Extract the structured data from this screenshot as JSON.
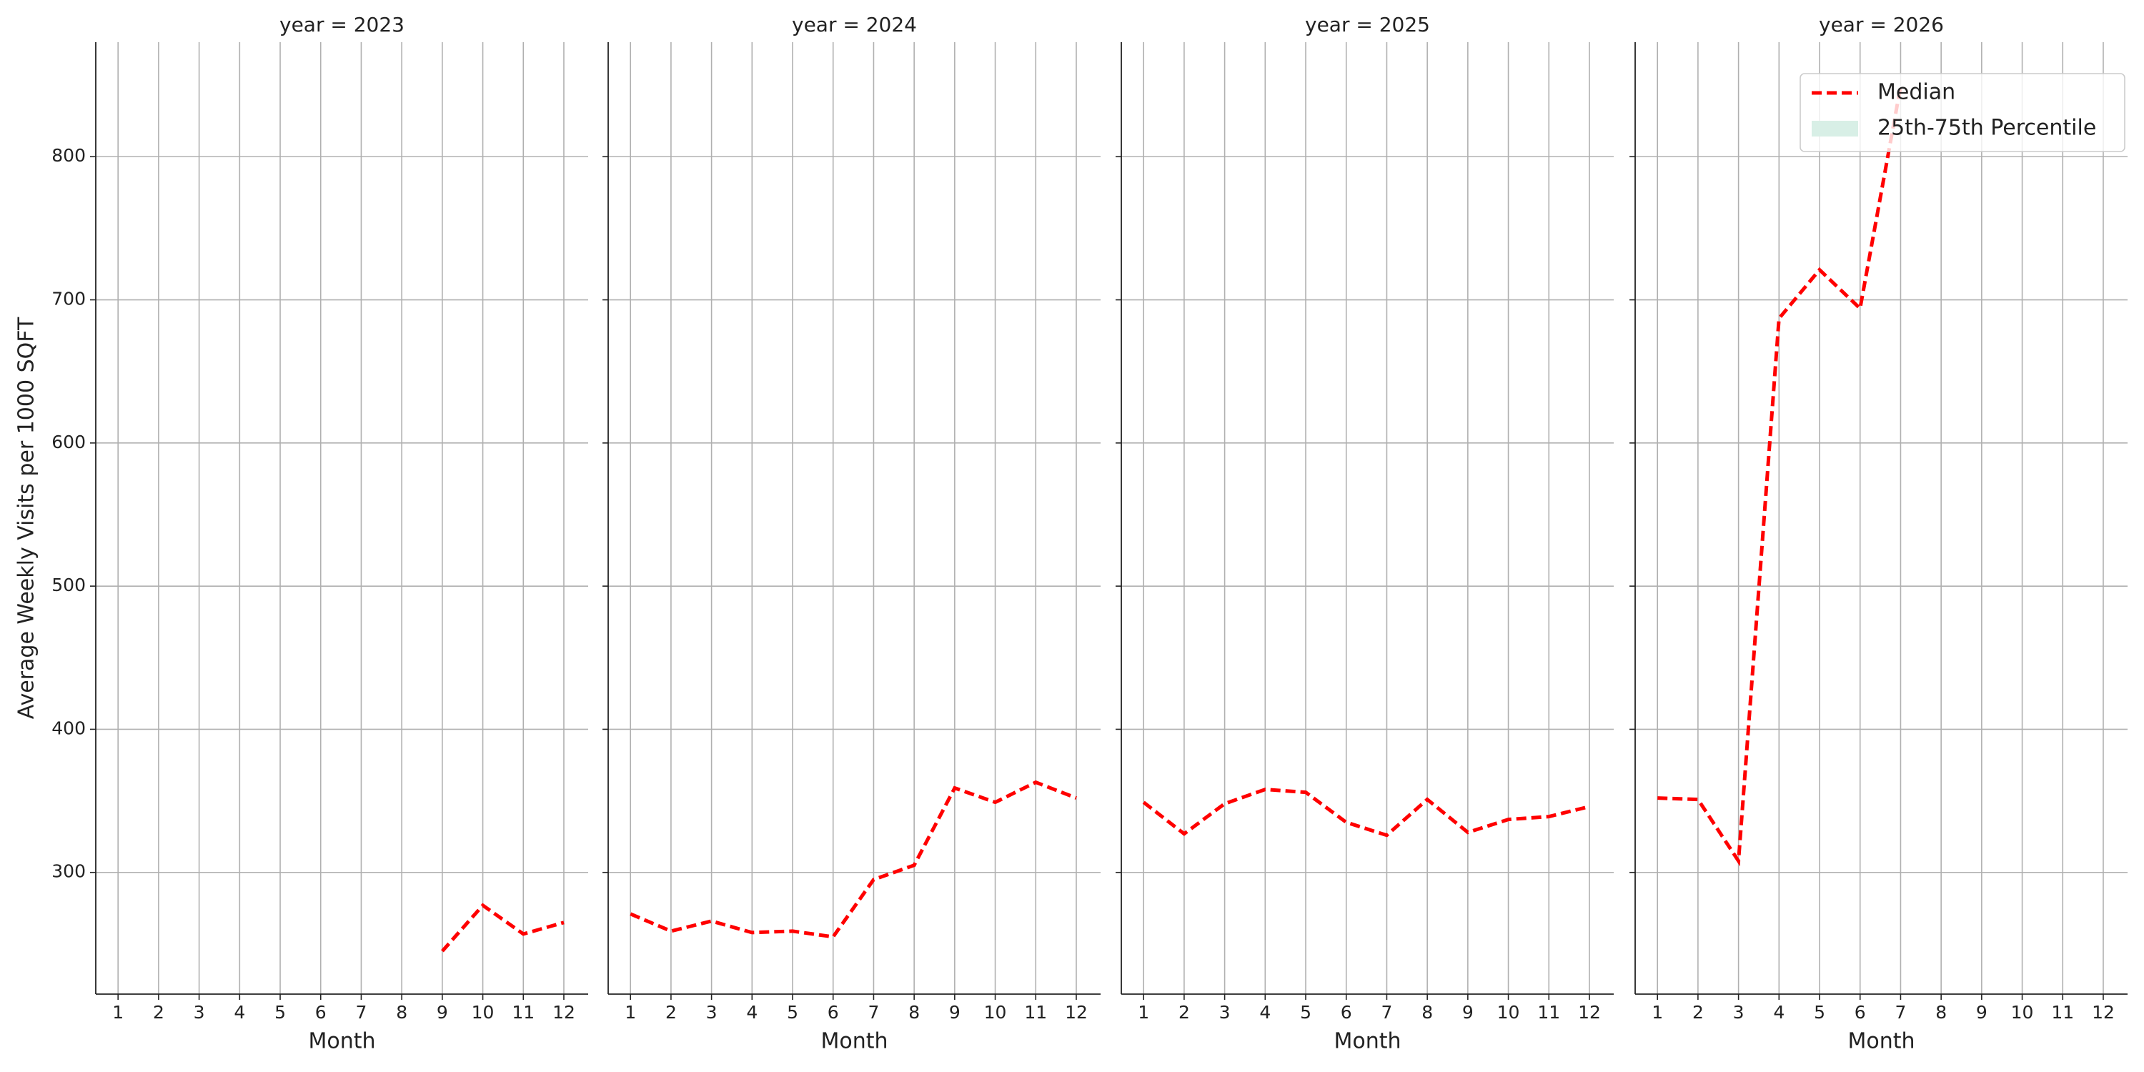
{
  "chart_data": [
    {
      "type": "line",
      "title": "year = 2023",
      "xlabel": "Month",
      "ylabel": "Average Weekly Visits per 1000 SQFT",
      "x": [
        1,
        2,
        3,
        4,
        5,
        6,
        7,
        8,
        9,
        10,
        11,
        12
      ],
      "series": [
        {
          "name": "Median",
          "color": "#ff0000",
          "kind": "line",
          "linestyle": "dashed",
          "values": [
            null,
            null,
            null,
            null,
            null,
            null,
            null,
            null,
            245,
            277,
            257,
            265
          ]
        }
      ],
      "xlim": [
        0.45,
        12.6
      ],
      "ylim": [
        215,
        880
      ],
      "xticks": [
        1,
        2,
        3,
        4,
        5,
        6,
        7,
        8,
        9,
        10,
        11,
        12
      ],
      "yticks": [
        300,
        400,
        500,
        600,
        700,
        800
      ],
      "grid": true
    },
    {
      "type": "line",
      "title": "year = 2024",
      "xlabel": "Month",
      "x": [
        1,
        2,
        3,
        4,
        5,
        6,
        7,
        8,
        9,
        10,
        11,
        12
      ],
      "series": [
        {
          "name": "Median",
          "color": "#ff0000",
          "kind": "line",
          "linestyle": "dashed",
          "values": [
            271,
            259,
            266,
            258,
            259,
            255,
            295,
            305,
            359,
            349,
            363,
            352
          ]
        }
      ],
      "xlim": [
        0.45,
        12.6
      ],
      "ylim": [
        215,
        880
      ],
      "xticks": [
        1,
        2,
        3,
        4,
        5,
        6,
        7,
        8,
        9,
        10,
        11,
        12
      ],
      "yticks": [
        300,
        400,
        500,
        600,
        700,
        800
      ],
      "grid": true
    },
    {
      "type": "line",
      "title": "year = 2025",
      "xlabel": "Month",
      "x": [
        1,
        2,
        3,
        4,
        5,
        6,
        7,
        8,
        9,
        10,
        11,
        12
      ],
      "series": [
        {
          "name": "Median",
          "color": "#ff0000",
          "kind": "line",
          "linestyle": "dashed",
          "values": [
            349,
            327,
            348,
            358,
            356,
            335,
            326,
            351,
            328,
            337,
            339,
            346
          ]
        }
      ],
      "xlim": [
        0.45,
        12.6
      ],
      "ylim": [
        215,
        880
      ],
      "xticks": [
        1,
        2,
        3,
        4,
        5,
        6,
        7,
        8,
        9,
        10,
        11,
        12
      ],
      "yticks": [
        300,
        400,
        500,
        600,
        700,
        800
      ],
      "grid": true
    },
    {
      "type": "line",
      "title": "year = 2026",
      "xlabel": "Month",
      "x": [
        1,
        2,
        3,
        4,
        5,
        6,
        7,
        8,
        9,
        10,
        11,
        12
      ],
      "series": [
        {
          "name": "Median",
          "color": "#ff0000",
          "kind": "line",
          "linestyle": "dashed",
          "values": [
            352,
            351,
            308,
            687,
            721,
            694,
            849,
            null,
            null,
            null,
            null,
            null
          ]
        },
        {
          "name": "25th-75th Percentile",
          "color": "#d8efe6",
          "kind": "band",
          "values": [
            null,
            null,
            null,
            null,
            null,
            null,
            null,
            null,
            null,
            null,
            null,
            null
          ]
        }
      ],
      "xlim": [
        0.45,
        12.6
      ],
      "ylim": [
        215,
        880
      ],
      "xticks": [
        1,
        2,
        3,
        4,
        5,
        6,
        7,
        8,
        9,
        10,
        11,
        12
      ],
      "yticks": [
        300,
        400,
        500,
        600,
        700,
        800
      ],
      "grid": true,
      "legend": "upper right"
    }
  ]
}
